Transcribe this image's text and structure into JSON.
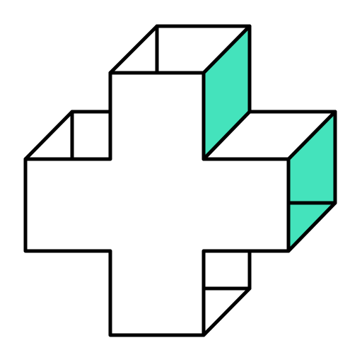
{
  "icon": {
    "name": "isometric-medical-cross-icon",
    "colors": {
      "outline": "#000000",
      "face": "#ffffff",
      "accent": "#44e3bc",
      "background": "#ffffff"
    }
  }
}
